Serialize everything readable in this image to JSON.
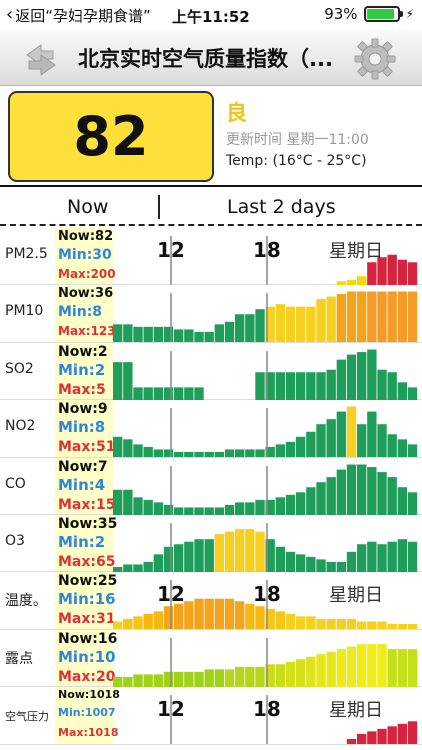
{
  "status_bar": {
    "back_label": "返回“孕妇孕期食谱”",
    "time": "上午11:52",
    "battery": "93%",
    "battery_level": 0.93
  },
  "nav": {
    "title": "北京实时空气质量指数（...",
    "refresh_icon": "refresh-icon",
    "settings_icon": "gear-icon"
  },
  "aqi": {
    "value": "82",
    "level": "良",
    "updated": "更新时间 星期一11:00",
    "temp": "Temp: (16°C - 25°C)",
    "box_color": "#fde03a",
    "level_color": "#f1c40f"
  },
  "tabs": {
    "now": "Now",
    "last_days": "Last 2 days"
  },
  "chart_labels": {
    "t12": "12",
    "t18": "18",
    "sunday": "星期日"
  },
  "rows": [
    {
      "label": "PM2.5",
      "now": "Now:82",
      "min": "Min:30",
      "max": "Max:200",
      "labels": true,
      "bars": [
        0,
        0,
        0,
        0,
        0,
        0,
        0,
        0,
        0,
        0,
        0,
        0,
        0,
        0,
        0,
        0,
        0,
        0,
        0,
        0,
        0,
        0,
        3,
        4,
        7,
        18,
        22,
        24,
        20,
        18
      ],
      "colors": [
        "#ffd700",
        "#ffd700",
        "#ffd700",
        "#ffd700",
        "#ffd700",
        "#ffd700",
        "#ffd700",
        "#ffd700",
        "#ffd700",
        "#ffd700",
        "#ffd700",
        "#ffd700",
        "#ffd700",
        "#ffd700",
        "#ffd700",
        "#ffd700",
        "#ffd700",
        "#ffd700",
        "#ffd700",
        "#ffd700",
        "#ffd700",
        "#ffd700",
        "#ffd700",
        "#ffd700",
        "#ffd700",
        "#d6233e",
        "#d6233e",
        "#d6233e",
        "#d6233e",
        "#d6233e"
      ]
    },
    {
      "label": "PM10",
      "now": "Now:36",
      "min": "Min:8",
      "max": "Max:123",
      "labels": false,
      "bars": [
        14,
        14,
        12,
        12,
        12,
        12,
        10,
        10,
        8,
        8,
        14,
        16,
        22,
        22,
        26,
        28,
        30,
        28,
        28,
        28,
        34,
        36,
        38,
        40,
        40,
        40,
        40,
        40,
        40,
        40
      ],
      "colors": [
        "#1e9e5a",
        "#1e9e5a",
        "#1e9e5a",
        "#1e9e5a",
        "#1e9e5a",
        "#1e9e5a",
        "#1e9e5a",
        "#1e9e5a",
        "#1e9e5a",
        "#1e9e5a",
        "#1e9e5a",
        "#1e9e5a",
        "#1e9e5a",
        "#1e9e5a",
        "#1e9e5a",
        "#f5d020",
        "#f5d020",
        "#f5d020",
        "#f5d020",
        "#f5d020",
        "#f5d020",
        "#f5d020",
        "#f5a31a",
        "#f5a31a",
        "#f5a31a",
        "#f59b2a",
        "#f59b2a",
        "#f59b2a",
        "#f59b2a",
        "#f59b2a"
      ]
    },
    {
      "label": "SO2",
      "now": "Now:2",
      "min": "Min:2",
      "max": "Max:5",
      "labels": false,
      "big": true,
      "bars": [
        30,
        30,
        10,
        10,
        10,
        10,
        10,
        10,
        10,
        0,
        0,
        0,
        0,
        0,
        22,
        22,
        22,
        22,
        22,
        22,
        22,
        24,
        32,
        36,
        38,
        40,
        24,
        22,
        14,
        10
      ],
      "colors": [
        "#1e9e5a"
      ]
    },
    {
      "label": "NO2",
      "now": "Now:9",
      "min": "Min:8",
      "max": "Max:51",
      "labels": false,
      "big": true,
      "bars": [
        16,
        14,
        10,
        8,
        6,
        6,
        4,
        4,
        4,
        4,
        4,
        6,
        6,
        6,
        6,
        8,
        10,
        12,
        16,
        20,
        26,
        30,
        36,
        40,
        26,
        36,
        26,
        18,
        14,
        10
      ],
      "colors": [
        "#1e9e5a",
        "#1e9e5a",
        "#1e9e5a",
        "#1e9e5a",
        "#1e9e5a",
        "#1e9e5a",
        "#1e9e5a",
        "#1e9e5a",
        "#1e9e5a",
        "#1e9e5a",
        "#1e9e5a",
        "#1e9e5a",
        "#1e9e5a",
        "#1e9e5a",
        "#1e9e5a",
        "#1e9e5a",
        "#1e9e5a",
        "#1e9e5a",
        "#1e9e5a",
        "#1e9e5a",
        "#1e9e5a",
        "#1e9e5a",
        "#1e9e5a",
        "#f5d020",
        "#1e9e5a",
        "#1e9e5a",
        "#1e9e5a",
        "#1e9e5a",
        "#1e9e5a",
        "#1e9e5a"
      ]
    },
    {
      "label": "CO",
      "now": "Now:7",
      "min": "Min:4",
      "max": "Max:15",
      "labels": false,
      "big": true,
      "bars": [
        20,
        20,
        14,
        12,
        10,
        8,
        6,
        6,
        6,
        6,
        6,
        8,
        10,
        10,
        12,
        12,
        14,
        16,
        18,
        22,
        26,
        30,
        36,
        40,
        40,
        38,
        34,
        30,
        22,
        18
      ],
      "colors": [
        "#1e9e5a"
      ]
    },
    {
      "label": "O3",
      "now": "Now:35",
      "min": "Min:2",
      "max": "Max:65",
      "labels": false,
      "big": true,
      "bars": [
        4,
        6,
        6,
        8,
        14,
        20,
        22,
        24,
        26,
        26,
        30,
        32,
        34,
        34,
        32,
        26,
        20,
        16,
        14,
        12,
        10,
        8,
        8,
        16,
        22,
        24,
        22,
        24,
        26,
        24
      ],
      "colors": [
        "#1e9e5a",
        "#1e9e5a",
        "#1e9e5a",
        "#1e9e5a",
        "#1e9e5a",
        "#1e9e5a",
        "#1e9e5a",
        "#1e9e5a",
        "#1e9e5a",
        "#1e9e5a",
        "#f5d020",
        "#f5d020",
        "#f5d020",
        "#f5d020",
        "#f5d020",
        "#1e9e5a",
        "#1e9e5a",
        "#1e9e5a",
        "#1e9e5a",
        "#1e9e5a",
        "#1e9e5a",
        "#1e9e5a",
        "#1e9e5a",
        "#1e9e5a",
        "#1e9e5a",
        "#1e9e5a",
        "#1e9e5a",
        "#1e9e5a",
        "#1e9e5a",
        "#1e9e5a"
      ]
    },
    {
      "label": "温度。",
      "now": "Now:25",
      "min": "Min:16",
      "max": "Max:31",
      "labels": true,
      "big": true,
      "bars": [
        6,
        8,
        10,
        12,
        14,
        18,
        20,
        22,
        24,
        24,
        24,
        24,
        22,
        20,
        18,
        16,
        14,
        12,
        10,
        10,
        8,
        8,
        8,
        8,
        6,
        6,
        6,
        4,
        4,
        4
      ],
      "colors": [
        "#f5d020",
        "#f5c518",
        "#f5c518",
        "#f5b80f",
        "#f5b80f",
        "#f5a31a",
        "#f5a31a",
        "#f5a31a",
        "#f5a31a",
        "#f5a31a",
        "#f5a31a",
        "#f5a31a",
        "#f5a31a",
        "#f5b80f",
        "#f5b80f",
        "#f5c518",
        "#f5c518",
        "#f5d020",
        "#f5d020",
        "#f5d020",
        "#f5d020",
        "#f5d020",
        "#f5d020",
        "#f5d020",
        "#f5d020",
        "#f5d020",
        "#f5d020",
        "#f5d020",
        "#f5d020",
        "#f5d020"
      ]
    },
    {
      "label": "露点",
      "now": "Now:16",
      "min": "Min:10",
      "max": "Max:20",
      "labels": false,
      "big": true,
      "bars": [
        8,
        8,
        10,
        10,
        10,
        12,
        12,
        12,
        12,
        14,
        14,
        14,
        16,
        16,
        16,
        18,
        18,
        20,
        22,
        24,
        26,
        28,
        30,
        32,
        34,
        34,
        34,
        30,
        30,
        30
      ],
      "colors": [
        "#9fd31a",
        "#9fd31a",
        "#9fd31a",
        "#9fd31a",
        "#9fd31a",
        "#9fd31a",
        "#9fd31a",
        "#9fd31a",
        "#9fd31a",
        "#9fd31a",
        "#9fd31a",
        "#b5d61a",
        "#b5d61a",
        "#b5d61a",
        "#b5d61a",
        "#c8dc1a",
        "#c8dc1a",
        "#d4e01a",
        "#d4e01a",
        "#dde41a",
        "#e6e61a",
        "#e6e61a",
        "#ecea1a",
        "#ecea1a",
        "#f0ec1a",
        "#f0ec1a",
        "#f0ec1a",
        "#c4e01a",
        "#c4e01a",
        "#c4e01a"
      ]
    },
    {
      "label": "空气压力",
      "now": "Now:1018",
      "min": "Min:1007",
      "max": "Max:1018",
      "labels": true,
      "small": true,
      "bars": [
        0,
        0,
        0,
        0,
        0,
        0,
        0,
        0,
        0,
        0,
        0,
        0,
        0,
        0,
        0,
        0,
        0,
        0,
        0,
        0,
        0,
        0,
        0,
        4,
        8,
        10,
        12,
        14,
        16,
        18
      ],
      "colors": [
        "#d6233e"
      ]
    }
  ]
}
